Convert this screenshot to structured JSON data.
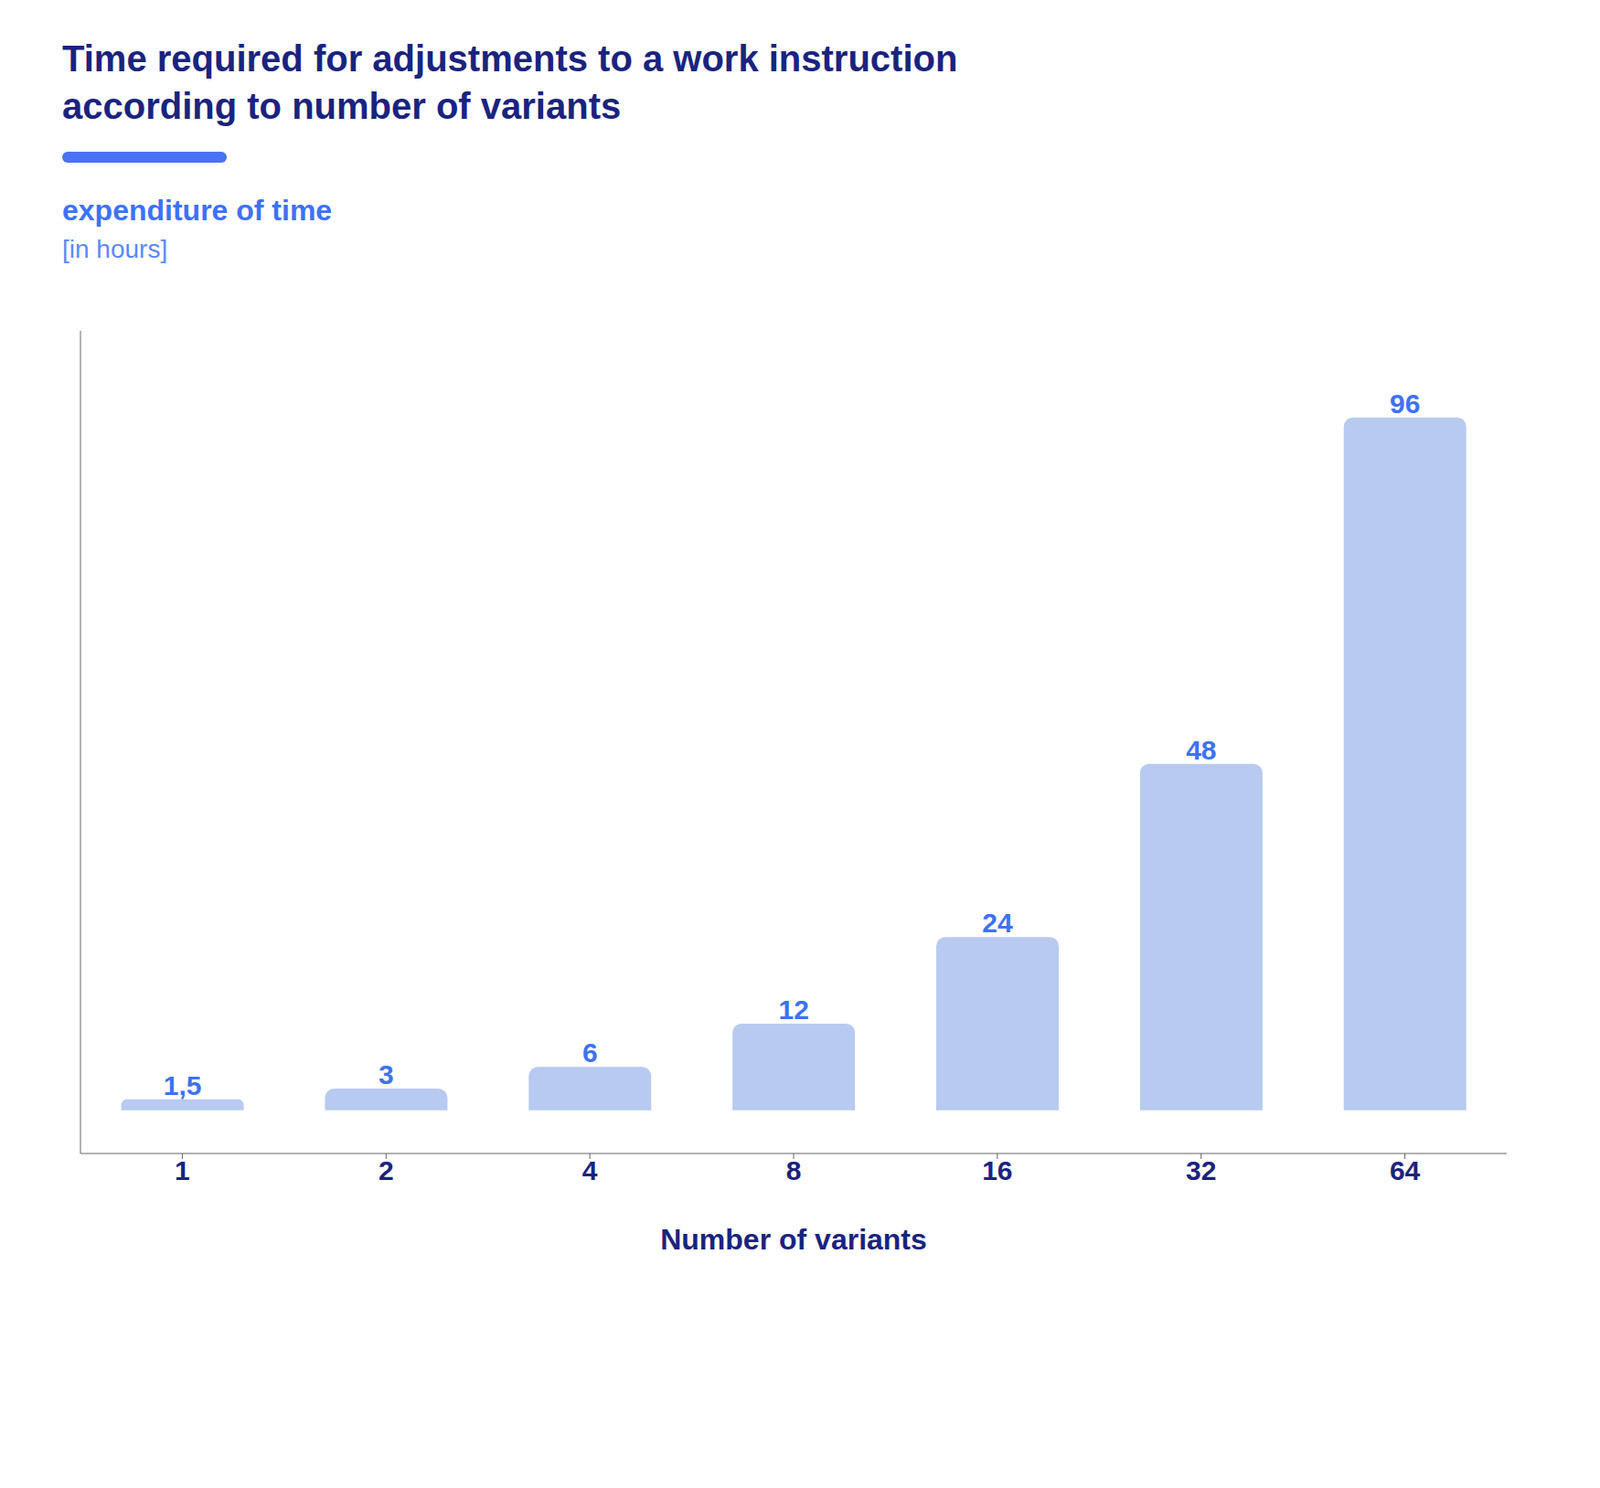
{
  "chart_data": {
    "type": "bar",
    "title": "Time required for adjustments to a work instruction\naccording to number of variants",
    "ylabel": "expenditure of time\n[in hours]",
    "xlabel": "Number of variants",
    "categories": [
      "1",
      "2",
      "4",
      "8",
      "16",
      "32",
      "64"
    ],
    "values": [
      1.5,
      3,
      6,
      12,
      24,
      48,
      96
    ],
    "value_labels": [
      "1,5",
      "3",
      "6",
      "12",
      "24",
      "48",
      "96"
    ],
    "data_labels": true,
    "color": "#b8caf0",
    "ylim": [
      -6,
      108
    ],
    "tick_labels": "x",
    "grid": false
  }
}
